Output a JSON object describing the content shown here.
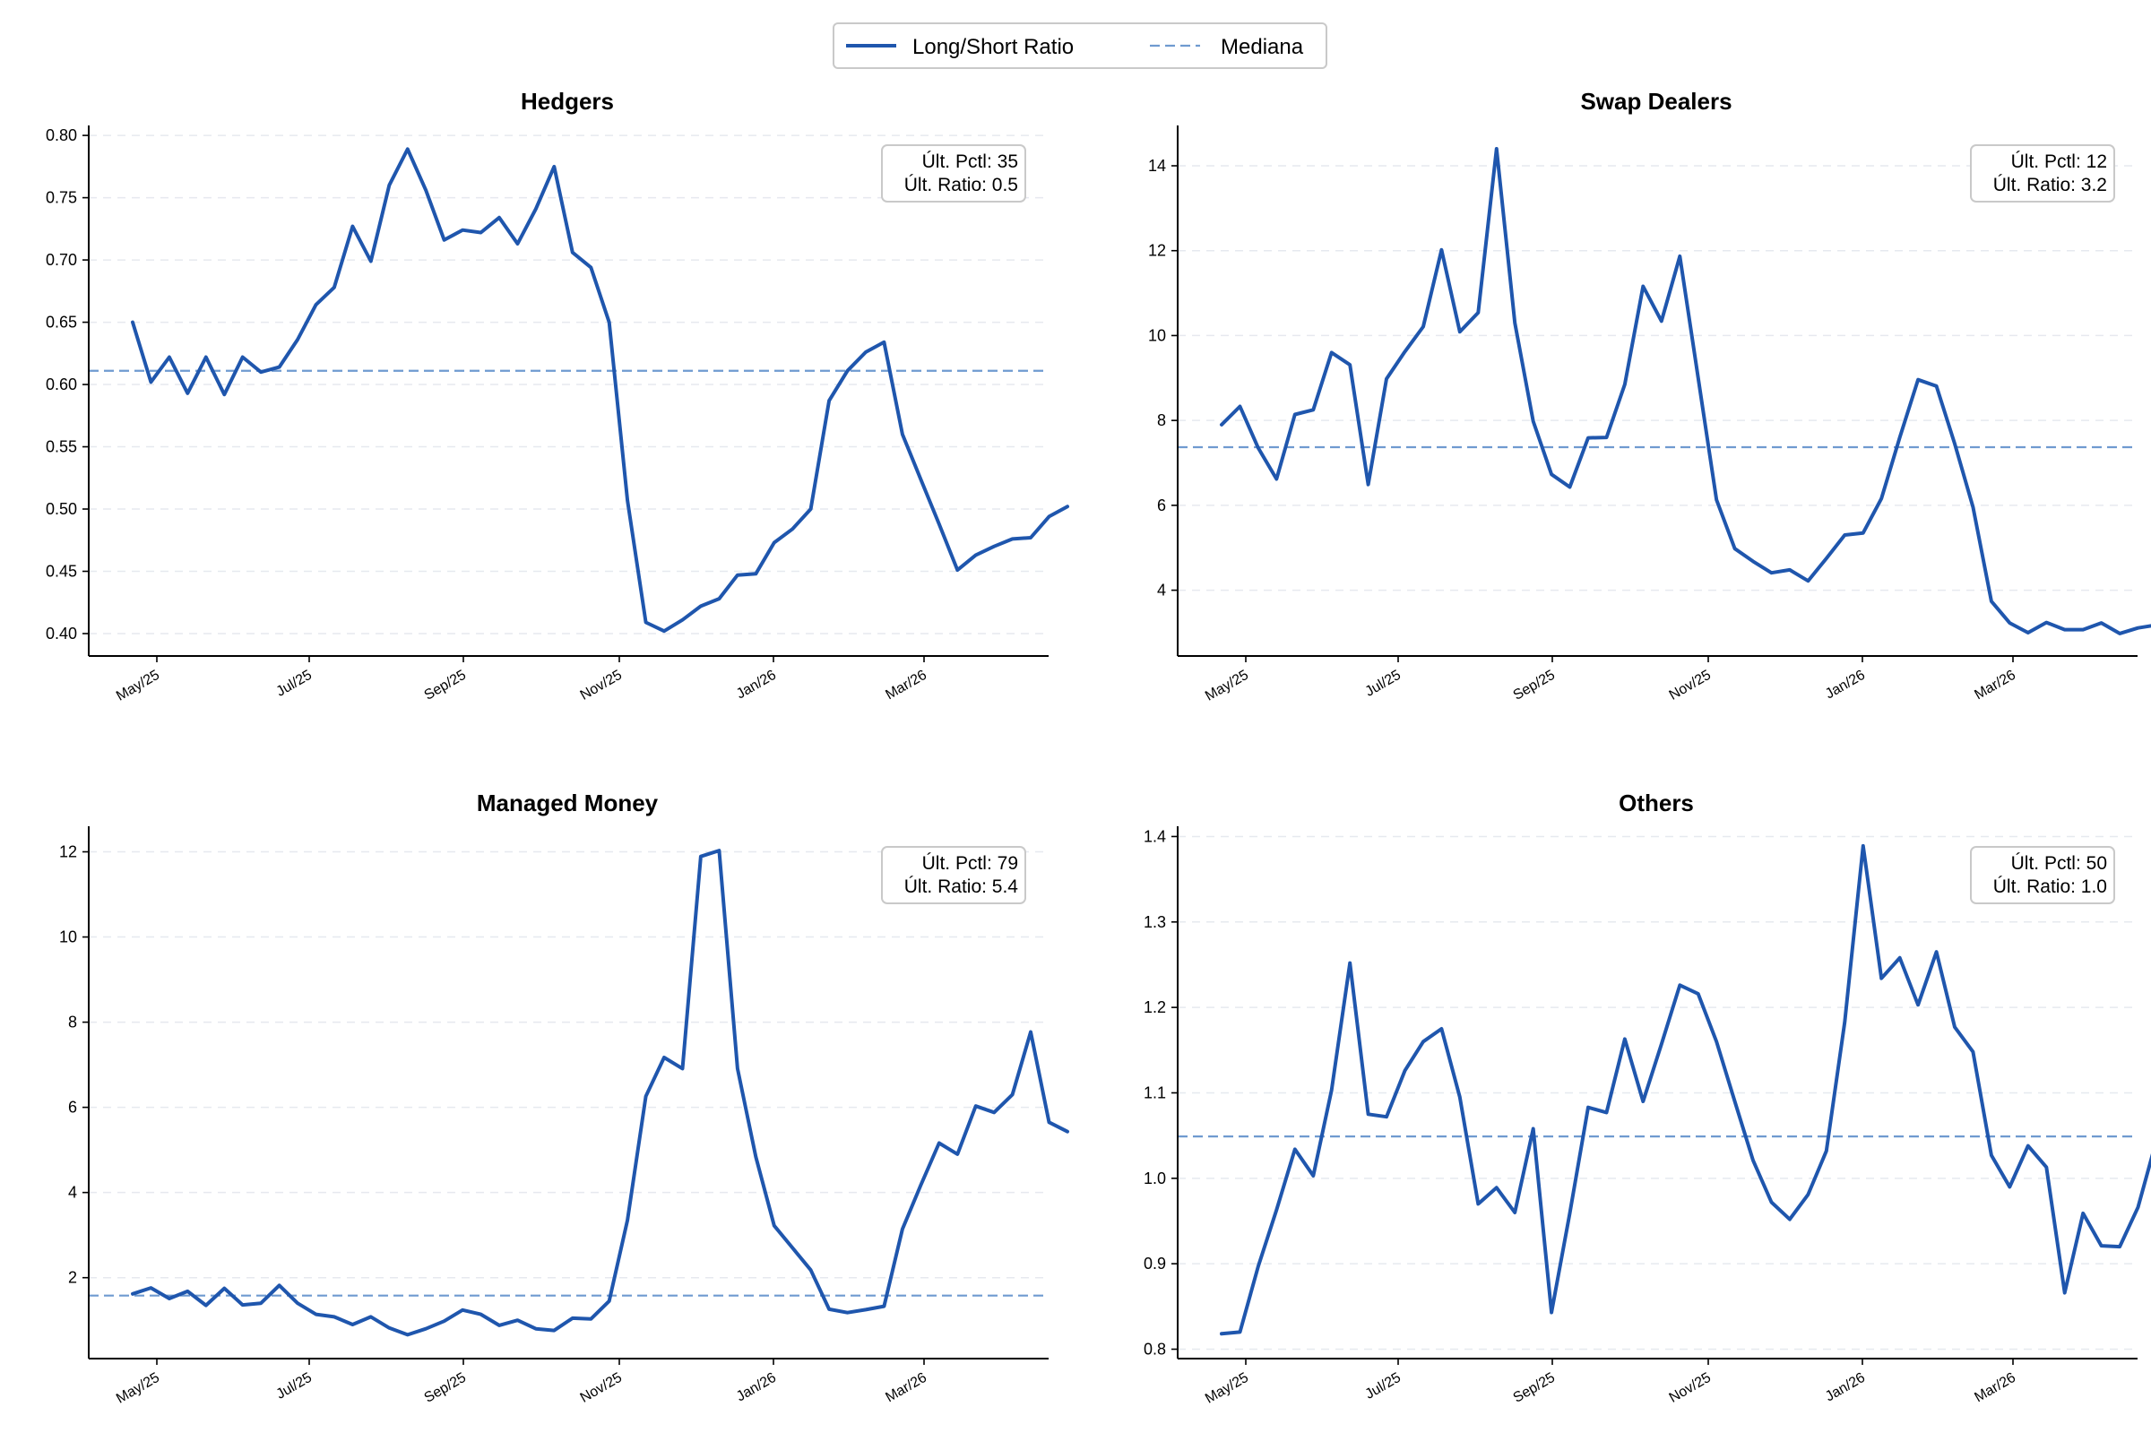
{
  "legend": {
    "series_label": "Long/Short Ratio",
    "median_label": "Mediana"
  },
  "colors": {
    "series": "#1f56ad",
    "median": "#6f9ad0"
  },
  "chart_data": [
    {
      "type": "line",
      "title": "Hedgers",
      "x_ticks": [
        "May/25",
        "Jul/25",
        "Sep/25",
        "Nov/25",
        "Jan/26",
        "Mar/26"
      ],
      "y_ticks": [
        "0.40",
        "0.45",
        "0.50",
        "0.55",
        "0.60",
        "0.65",
        "0.70",
        "0.75",
        "0.80"
      ],
      "ylim": [
        0.382,
        0.808
      ],
      "median": 0.611,
      "info": [
        "Últ. Pctl: 35",
        "Últ. Ratio: 0.5"
      ],
      "grid": "horizontal dashed",
      "values": [
        0.65,
        0.602,
        0.622,
        0.593,
        0.622,
        0.592,
        0.622,
        0.61,
        0.614,
        0.636,
        0.664,
        0.678,
        0.727,
        0.699,
        0.76,
        0.789,
        0.756,
        0.716,
        0.724,
        0.722,
        0.734,
        0.713,
        0.741,
        0.775,
        0.706,
        0.694,
        0.65,
        0.507,
        0.409,
        0.402,
        0.411,
        0.422,
        0.428,
        0.447,
        0.448,
        0.473,
        0.484,
        0.5,
        0.587,
        0.611,
        0.626,
        0.634,
        0.56,
        0.524,
        0.488,
        0.451,
        0.463,
        0.47,
        0.476,
        0.477,
        0.494,
        0.502
      ]
    },
    {
      "type": "line",
      "title": "Swap Dealers",
      "x_ticks": [
        "May/25",
        "Jul/25",
        "Sep/25",
        "Nov/25",
        "Jan/26",
        "Mar/26"
      ],
      "y_ticks": [
        "4",
        "6",
        "8",
        "10",
        "12",
        "14"
      ],
      "ylim": [
        2.45,
        14.95
      ],
      "median": 7.37,
      "info": [
        "Últ. Pctl: 12",
        "Últ. Ratio: 3.2"
      ],
      "grid": "horizontal dashed",
      "values": [
        7.9,
        8.33,
        7.35,
        6.62,
        8.14,
        8.25,
        9.6,
        9.31,
        6.49,
        8.98,
        9.62,
        10.21,
        12.02,
        10.09,
        10.54,
        14.4,
        10.3,
        7.98,
        6.73,
        6.43,
        7.59,
        7.6,
        8.85,
        11.16,
        10.34,
        11.87,
        9.01,
        6.13,
        4.98,
        4.68,
        4.41,
        4.48,
        4.22,
        4.75,
        5.3,
        5.35,
        6.16,
        7.6,
        8.96,
        8.81,
        7.45,
        5.96,
        3.74,
        3.23,
        3.0,
        3.24,
        3.07,
        3.07,
        3.23,
        2.98,
        3.11,
        3.18
      ]
    },
    {
      "type": "line",
      "title": "Managed Money",
      "x_ticks": [
        "May/25",
        "Jul/25",
        "Sep/25",
        "Nov/25",
        "Jan/26",
        "Mar/26"
      ],
      "y_ticks": [
        "2",
        "4",
        "6",
        "8",
        "10",
        "12"
      ],
      "ylim": [
        0.1,
        12.6
      ],
      "median": 1.58,
      "info": [
        "Últ. Pctl: 79",
        "Últ. Ratio: 5.4"
      ],
      "grid": "horizontal dashed",
      "values": [
        1.62,
        1.76,
        1.51,
        1.68,
        1.35,
        1.75,
        1.36,
        1.4,
        1.82,
        1.4,
        1.14,
        1.08,
        0.9,
        1.08,
        0.82,
        0.66,
        0.8,
        0.98,
        1.24,
        1.14,
        0.88,
        1.0,
        0.8,
        0.76,
        1.05,
        1.03,
        1.45,
        3.35,
        6.26,
        7.17,
        6.91,
        11.89,
        12.03,
        6.91,
        4.84,
        3.22,
        2.7,
        2.18,
        1.26,
        1.18,
        1.25,
        1.33,
        3.14,
        4.17,
        5.16,
        4.9,
        6.03,
        5.88,
        6.3,
        7.77,
        5.65,
        5.43
      ]
    },
    {
      "type": "line",
      "title": "Others",
      "x_ticks": [
        "May/25",
        "Jul/25",
        "Sep/25",
        "Nov/25",
        "Jan/26",
        "Mar/26"
      ],
      "y_ticks": [
        "0.8",
        "0.9",
        "1.0",
        "1.1",
        "1.2",
        "1.3",
        "1.4"
      ],
      "ylim": [
        0.789,
        1.412
      ],
      "median": 1.049,
      "info": [
        "Últ. Pctl: 50",
        "Últ. Ratio: 1.0"
      ],
      "grid": "horizontal dashed",
      "values": [
        0.818,
        0.82,
        0.897,
        0.963,
        1.034,
        1.003,
        1.103,
        1.252,
        1.075,
        1.072,
        1.126,
        1.16,
        1.175,
        1.095,
        0.97,
        0.989,
        0.96,
        1.058,
        0.843,
        0.959,
        1.083,
        1.077,
        1.163,
        1.09,
        1.157,
        1.226,
        1.216,
        1.16,
        1.09,
        1.021,
        0.972,
        0.952,
        0.981,
        1.032,
        1.183,
        1.389,
        1.234,
        1.258,
        1.203,
        1.265,
        1.177,
        1.148,
        1.027,
        0.99,
        1.038,
        1.013,
        0.866,
        0.959,
        0.921,
        0.92,
        0.966,
        1.044
      ]
    }
  ]
}
